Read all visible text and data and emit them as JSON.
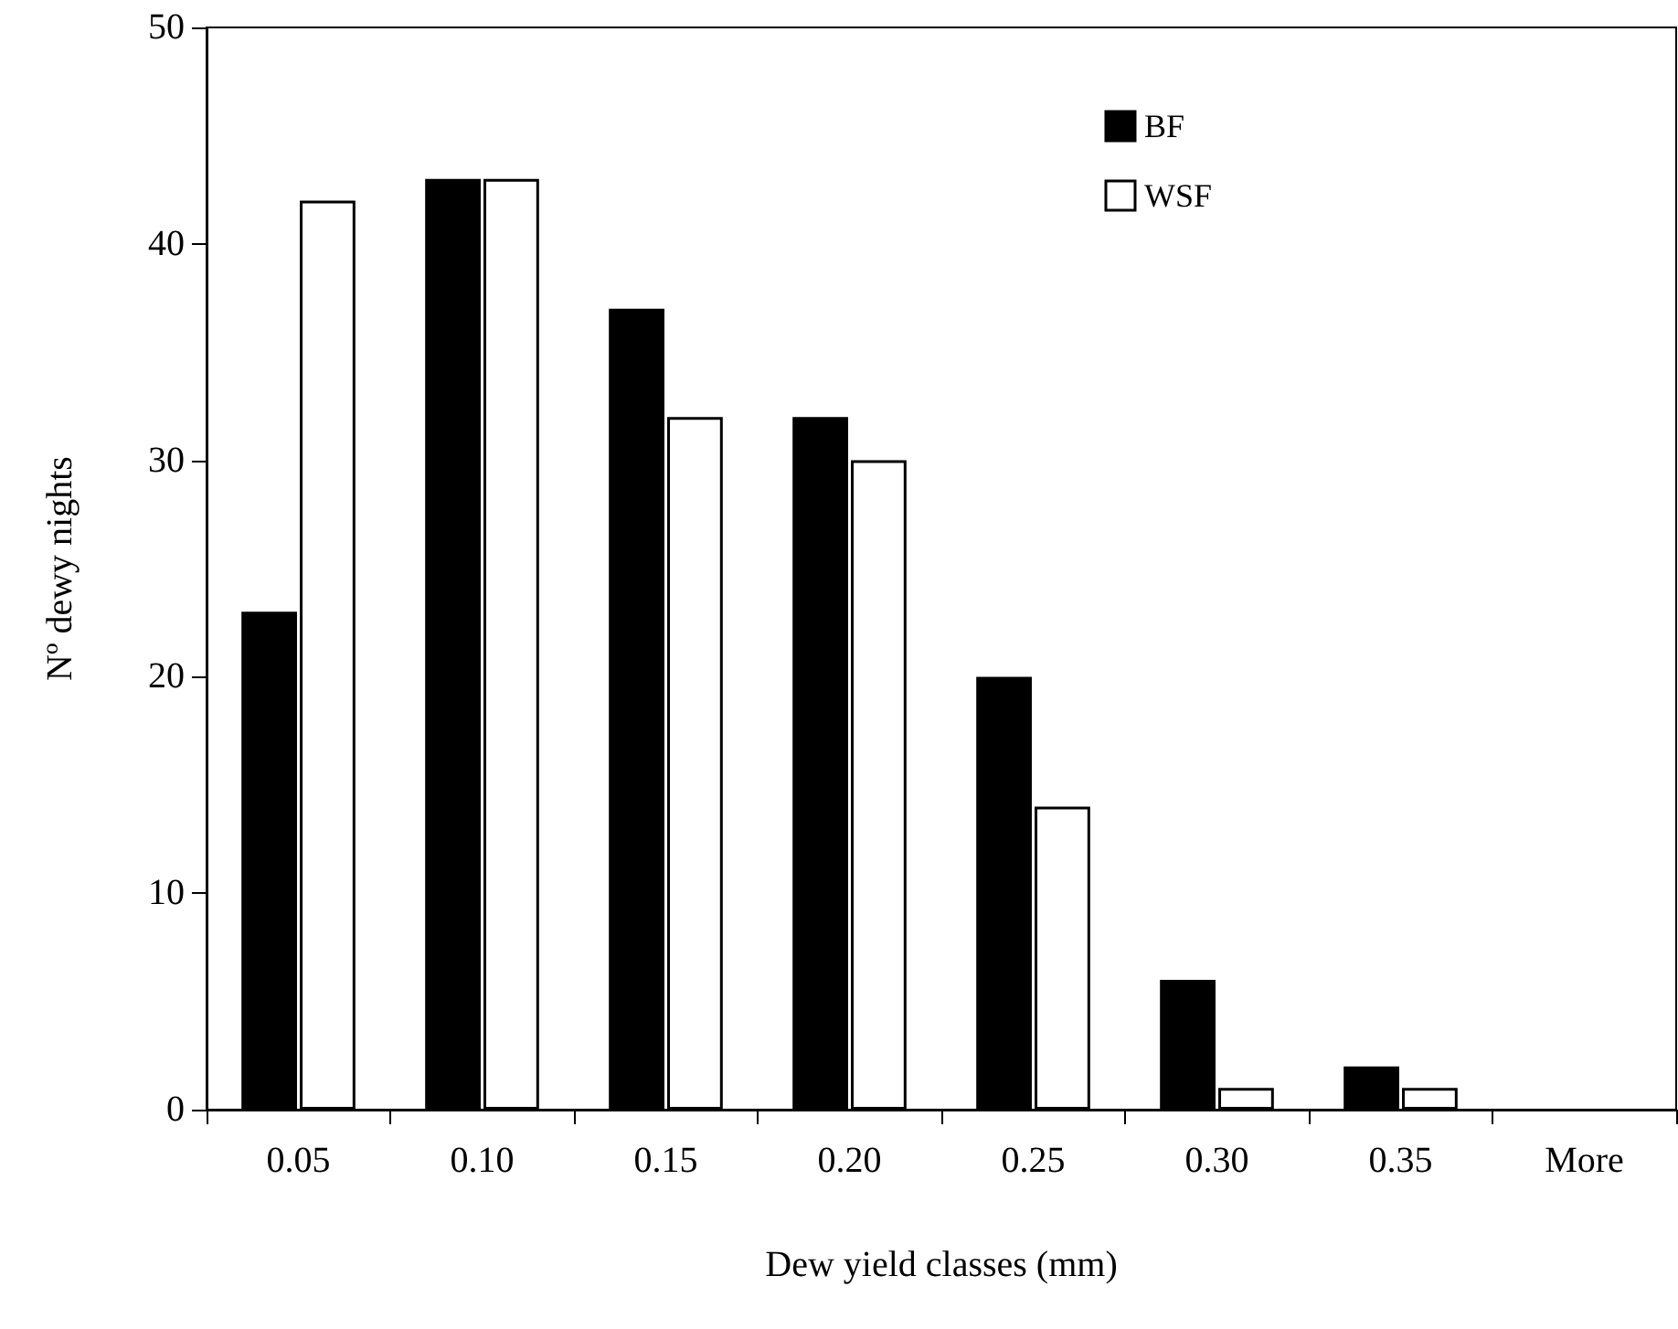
{
  "chart_data": {
    "type": "bar",
    "xlabel": "Dew yield classes (mm)",
    "ylabel": "Nº dewy nights",
    "categories": [
      "0.05",
      "0.10",
      "0.15",
      "0.20",
      "0.25",
      "0.30",
      "0.35",
      "More"
    ],
    "series": [
      {
        "name": "BF",
        "color": "#000000",
        "values": [
          23,
          43,
          37,
          32,
          20,
          6,
          2,
          null
        ]
      },
      {
        "name": "WSF",
        "color": "#ffffff",
        "values": [
          42,
          43,
          32,
          30,
          14,
          1,
          1,
          null
        ]
      }
    ],
    "ylim": [
      0,
      50
    ],
    "yticks": [
      0,
      10,
      20,
      30,
      40,
      50
    ],
    "grid": false,
    "legend": "top right"
  }
}
